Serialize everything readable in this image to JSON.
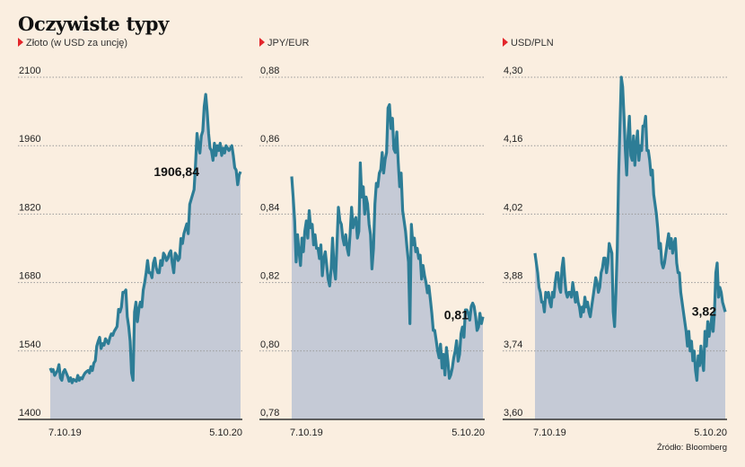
{
  "title": "Oczywiste typy",
  "source": "Źródło: Bloomberg",
  "colors": {
    "line": "#2d7d96",
    "area": "#c5cad6",
    "marker": "#e3262b",
    "grid": "#9a9a9a"
  },
  "chart_data": [
    {
      "type": "area",
      "subtitle": "Złoto (w USD za uncję)",
      "ylim": [
        1400,
        2100
      ],
      "yticks": [
        "2100",
        "1960",
        "1820",
        "1680",
        "1540",
        "1400"
      ],
      "ytick_values": [
        2100,
        1960,
        1820,
        1680,
        1540,
        1400
      ],
      "x_start": "7.10.19",
      "x_end": "5.10.20",
      "callout": "1906,84",
      "grid": true,
      "series": [
        {
          "values": [
            1505,
            1498,
            1502,
            1490,
            1495,
            1500,
            1512,
            1485,
            1480,
            1497,
            1502,
            1495,
            1488,
            1478,
            1485,
            1475,
            1482,
            1480,
            1478,
            1490,
            1480,
            1485,
            1483,
            1490,
            1495,
            1498,
            1500,
            1495,
            1508,
            1500,
            1515,
            1520,
            1550,
            1560,
            1568,
            1545,
            1555,
            1552,
            1565,
            1560,
            1555,
            1567,
            1575,
            1572,
            1580,
            1585,
            1590,
            1625,
            1620,
            1630,
            1660,
            1660,
            1665,
            1610,
            1590,
            1560,
            1495,
            1480,
            1620,
            1640,
            1600,
            1625,
            1640,
            1630,
            1665,
            1680,
            1700,
            1725,
            1700,
            1700,
            1690,
            1720,
            1730,
            1710,
            1700,
            1700,
            1725,
            1715,
            1740,
            1735,
            1725,
            1730,
            1740,
            1745,
            1720,
            1700,
            1740,
            1735,
            1725,
            1730,
            1770,
            1760,
            1780,
            1790,
            1800,
            1780,
            1840,
            1850,
            1860,
            1870,
            1920,
            1985,
            1960,
            1945,
            1980,
            1990,
            2040,
            2065,
            2030,
            1985,
            1955,
            1950,
            1930,
            1965,
            1940,
            1960,
            1950,
            1965,
            1940,
            1955,
            1945,
            1960,
            1955,
            1950,
            1955,
            1960,
            1940,
            1915,
            1910,
            1880,
            1900,
            1906.84
          ]
        }
      ]
    },
    {
      "type": "area",
      "subtitle": "JPY/EUR",
      "ylim": [
        0.78,
        0.88
      ],
      "yticks": [
        "0,88",
        "0,86",
        "0,84",
        "0,82",
        "0,80",
        "0,78"
      ],
      "ytick_values": [
        0.88,
        0.86,
        0.84,
        0.82,
        0.8,
        0.78
      ],
      "x_start": "7.10.19",
      "x_end": "5.10.20",
      "callout": "0,81",
      "grid": true,
      "series": [
        {
          "values": [
            0.851,
            0.845,
            0.838,
            0.826,
            0.834,
            0.829,
            0.825,
            0.833,
            0.829,
            0.835,
            0.838,
            0.833,
            0.841,
            0.836,
            0.837,
            0.831,
            0.834,
            0.83,
            0.83,
            0.827,
            0.831,
            0.822,
            0.827,
            0.829,
            0.825,
            0.821,
            0.819,
            0.824,
            0.833,
            0.824,
            0.821,
            0.831,
            0.842,
            0.838,
            0.837,
            0.833,
            0.831,
            0.834,
            0.83,
            0.828,
            0.834,
            0.842,
            0.836,
            0.838,
            0.839,
            0.833,
            0.835,
            0.855,
            0.845,
            0.848,
            0.84,
            0.845,
            0.843,
            0.837,
            0.834,
            0.824,
            0.83,
            0.843,
            0.849,
            0.848,
            0.852,
            0.853,
            0.858,
            0.852,
            0.856,
            0.858,
            0.871,
            0.872,
            0.865,
            0.868,
            0.859,
            0.858,
            0.864,
            0.855,
            0.848,
            0.852,
            0.841,
            0.838,
            0.835,
            0.83,
            0.826,
            0.808,
            0.837,
            0.831,
            0.833,
            0.829,
            0.83,
            0.827,
            0.828,
            0.821,
            0.825,
            0.822,
            0.82,
            0.817,
            0.819,
            0.815,
            0.811,
            0.806,
            0.806,
            0.803,
            0.8,
            0.798,
            0.802,
            0.795,
            0.799,
            0.793,
            0.801,
            0.797,
            0.792,
            0.793,
            0.795,
            0.798,
            0.8,
            0.803,
            0.797,
            0.799,
            0.805,
            0.807,
            0.804,
            0.812,
            0.812,
            0.811,
            0.809,
            0.813,
            0.814,
            0.813,
            0.81,
            0.806,
            0.807,
            0.811,
            0.808,
            0.81
          ]
        }
      ]
    },
    {
      "type": "area",
      "subtitle": "USD/PLN",
      "ylim": [
        3.6,
        4.3
      ],
      "yticks": [
        "4,30",
        "4,16",
        "4,02",
        "3,88",
        "3,74",
        "3,60"
      ],
      "ytick_values": [
        4.3,
        4.16,
        4.02,
        3.88,
        3.74,
        3.6
      ],
      "x_start": "7.10.19",
      "x_end": "5.10.20",
      "callout": "3,82",
      "grid": true,
      "series": [
        {
          "values": [
            3.94,
            3.92,
            3.9,
            3.87,
            3.86,
            3.84,
            3.84,
            3.82,
            3.86,
            3.85,
            3.86,
            3.84,
            3.83,
            3.86,
            3.85,
            3.88,
            3.9,
            3.9,
            3.87,
            3.86,
            3.91,
            3.93,
            3.89,
            3.86,
            3.85,
            3.86,
            3.86,
            3.85,
            3.88,
            3.86,
            3.84,
            3.86,
            3.84,
            3.83,
            3.81,
            3.83,
            3.82,
            3.85,
            3.83,
            3.84,
            3.82,
            3.81,
            3.83,
            3.85,
            3.87,
            3.89,
            3.88,
            3.86,
            3.87,
            3.9,
            3.91,
            3.93,
            3.93,
            3.9,
            3.92,
            3.96,
            3.95,
            3.94,
            3.82,
            3.79,
            3.86,
            3.95,
            4.1,
            4.2,
            4.3,
            4.28,
            4.22,
            4.15,
            4.1,
            4.18,
            4.22,
            4.14,
            4.13,
            4.18,
            4.12,
            4.16,
            4.19,
            4.13,
            4.16,
            4.15,
            4.2,
            4.2,
            4.22,
            4.15,
            4.15,
            4.13,
            4.1,
            4.11,
            4.06,
            4.04,
            4.02,
            3.99,
            3.95,
            3.96,
            3.92,
            3.91,
            3.92,
            3.94,
            3.96,
            3.98,
            3.95,
            3.97,
            3.94,
            3.96,
            3.97,
            3.92,
            3.9,
            3.9,
            3.86,
            3.84,
            3.82,
            3.8,
            3.78,
            3.75,
            3.78,
            3.74,
            3.76,
            3.72,
            3.74,
            3.7,
            3.68,
            3.73,
            3.71,
            3.75,
            3.72,
            3.7,
            3.78,
            3.75,
            3.8,
            3.77,
            3.79,
            3.81,
            3.78,
            3.82,
            3.9,
            3.92,
            3.85,
            3.87,
            3.86,
            3.84,
            3.83,
            3.82
          ]
        }
      ]
    }
  ]
}
